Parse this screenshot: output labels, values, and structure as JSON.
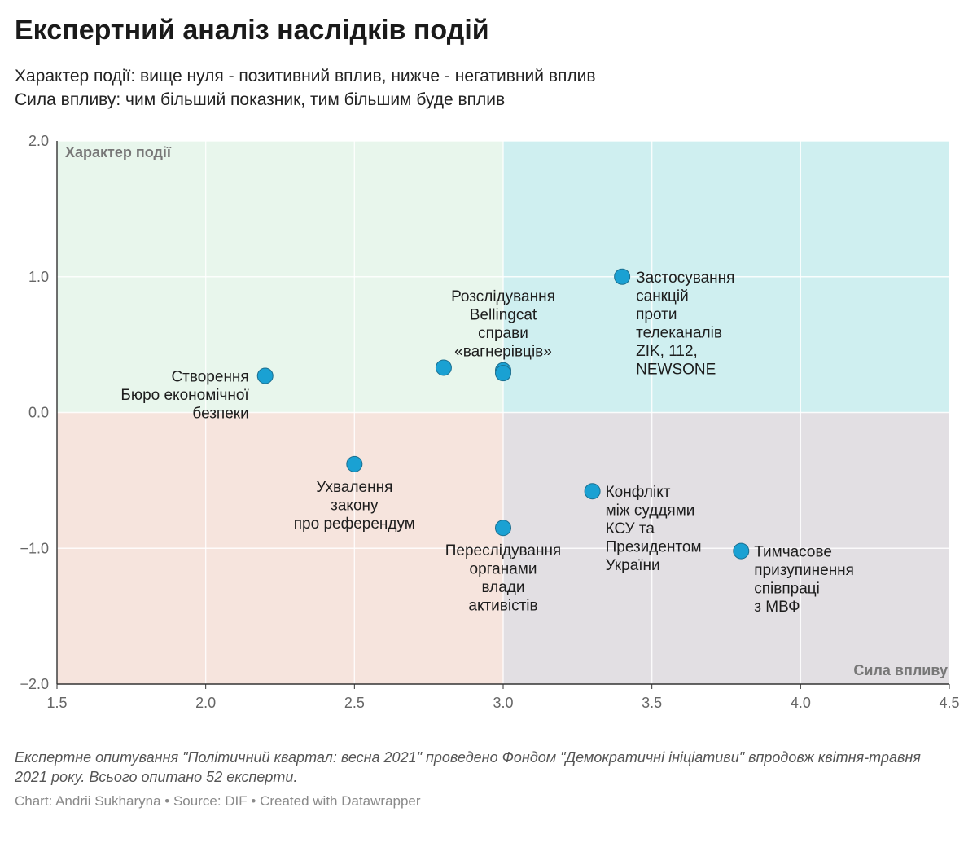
{
  "header": {
    "title": "Експертний аналіз наслідків подій",
    "subtitle_line1": "Характер події: вище нуля - позитивний вплив, нижче - негативний вплив",
    "subtitle_line2": "Сила впливу: чим більший показник, тим більшим буде вплив"
  },
  "chart_data": {
    "type": "scatter",
    "xlabel": "Сила впливу",
    "ylabel": "Характер події",
    "xlim": [
      1.5,
      4.5
    ],
    "ylim": [
      -2.0,
      2.0
    ],
    "x_ticks": [
      "1.5",
      "2.0",
      "2.5",
      "3.0",
      "3.5",
      "4.0",
      "4.5"
    ],
    "y_ticks": [
      "2.0",
      "1.0",
      "0.0",
      "−1.0",
      "−2.0"
    ],
    "quadrant_split": {
      "x": 3.0,
      "y": 0.0
    },
    "quadrant_colors": {
      "top_left": "#e8f6ec",
      "top_right": "#cfeff0",
      "bottom_left": "#f6e4dd",
      "bottom_right": "#e2dfe3"
    },
    "point_color": "#1aa1d3",
    "grid": true,
    "points": [
      {
        "x": 2.2,
        "y": 0.27,
        "label": [
          "Створення",
          "Бюро економічної",
          "безпеки"
        ]
      },
      {
        "x": 2.8,
        "y": 0.33,
        "label": []
      },
      {
        "x": 3.0,
        "y": 0.31,
        "label": [
          "Розслідування",
          "Bellingcat",
          "справи",
          "«вагнерівців»"
        ]
      },
      {
        "x": 3.0,
        "y": 0.29,
        "label": []
      },
      {
        "x": 3.4,
        "y": 1.0,
        "label": [
          "Застосування",
          "санкцій",
          "проти",
          "телеканалів",
          "ZIK, 112,",
          "NEWSONE"
        ]
      },
      {
        "x": 2.5,
        "y": -0.38,
        "label": [
          "Ухвалення",
          "закону",
          "про референдум"
        ]
      },
      {
        "x": 3.0,
        "y": -0.85,
        "label": [
          "Переслідування",
          "органами",
          "влади",
          "активістів"
        ]
      },
      {
        "x": 3.3,
        "y": -0.58,
        "label": [
          "Конфлікт",
          "між суддями",
          "КСУ та",
          "Президентом",
          "України"
        ]
      },
      {
        "x": 3.8,
        "y": -1.02,
        "label": [
          "Тимчасове",
          "призупинення",
          "співпраці",
          "з МВФ"
        ]
      }
    ]
  },
  "footer": {
    "notes": "Експертне опитування \"Політичний квартал: весна 2021\" проведено Фондом \"Демократичні ініціативи\" впродовж квітня-травня 2021 року. Всього опитано 52 експерти.",
    "credit_chart": "Chart: Andrii Sukharyna",
    "credit_source": "Source: DIF",
    "credit_tool": "Created with Datawrapper",
    "separator": " • "
  }
}
